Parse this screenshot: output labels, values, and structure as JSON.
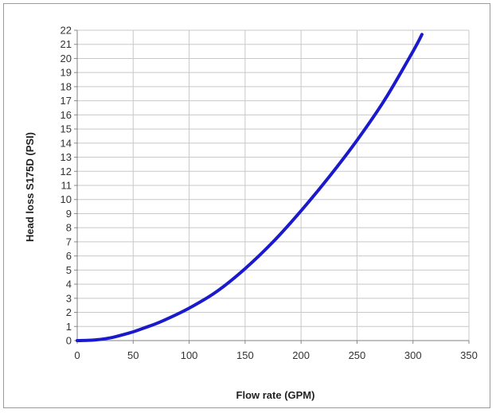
{
  "chart_data": {
    "type": "line",
    "xlabel": "Flow rate (GPM)",
    "ylabel": "Head loss  S175D (PSI)",
    "xlim": [
      0,
      350
    ],
    "ylim": [
      0,
      22
    ],
    "x_ticks": [
      0,
      50,
      100,
      150,
      200,
      250,
      300,
      350
    ],
    "y_ticks": [
      0,
      1,
      2,
      3,
      4,
      5,
      6,
      7,
      8,
      9,
      10,
      11,
      12,
      13,
      14,
      15,
      16,
      17,
      18,
      19,
      20,
      21,
      22
    ],
    "grid": true,
    "legend": "none",
    "series": [
      {
        "color": "#1a1acc",
        "x": [
          0,
          10,
          20,
          30,
          40,
          50,
          60,
          75,
          100,
          125,
          150,
          175,
          200,
          225,
          250,
          275,
          300,
          308
        ],
        "y": [
          0,
          0.02,
          0.08,
          0.2,
          0.4,
          0.62,
          0.9,
          1.35,
          2.3,
          3.5,
          5.1,
          7.0,
          9.2,
          11.6,
          14.2,
          17.1,
          20.5,
          21.7
        ]
      }
    ]
  }
}
